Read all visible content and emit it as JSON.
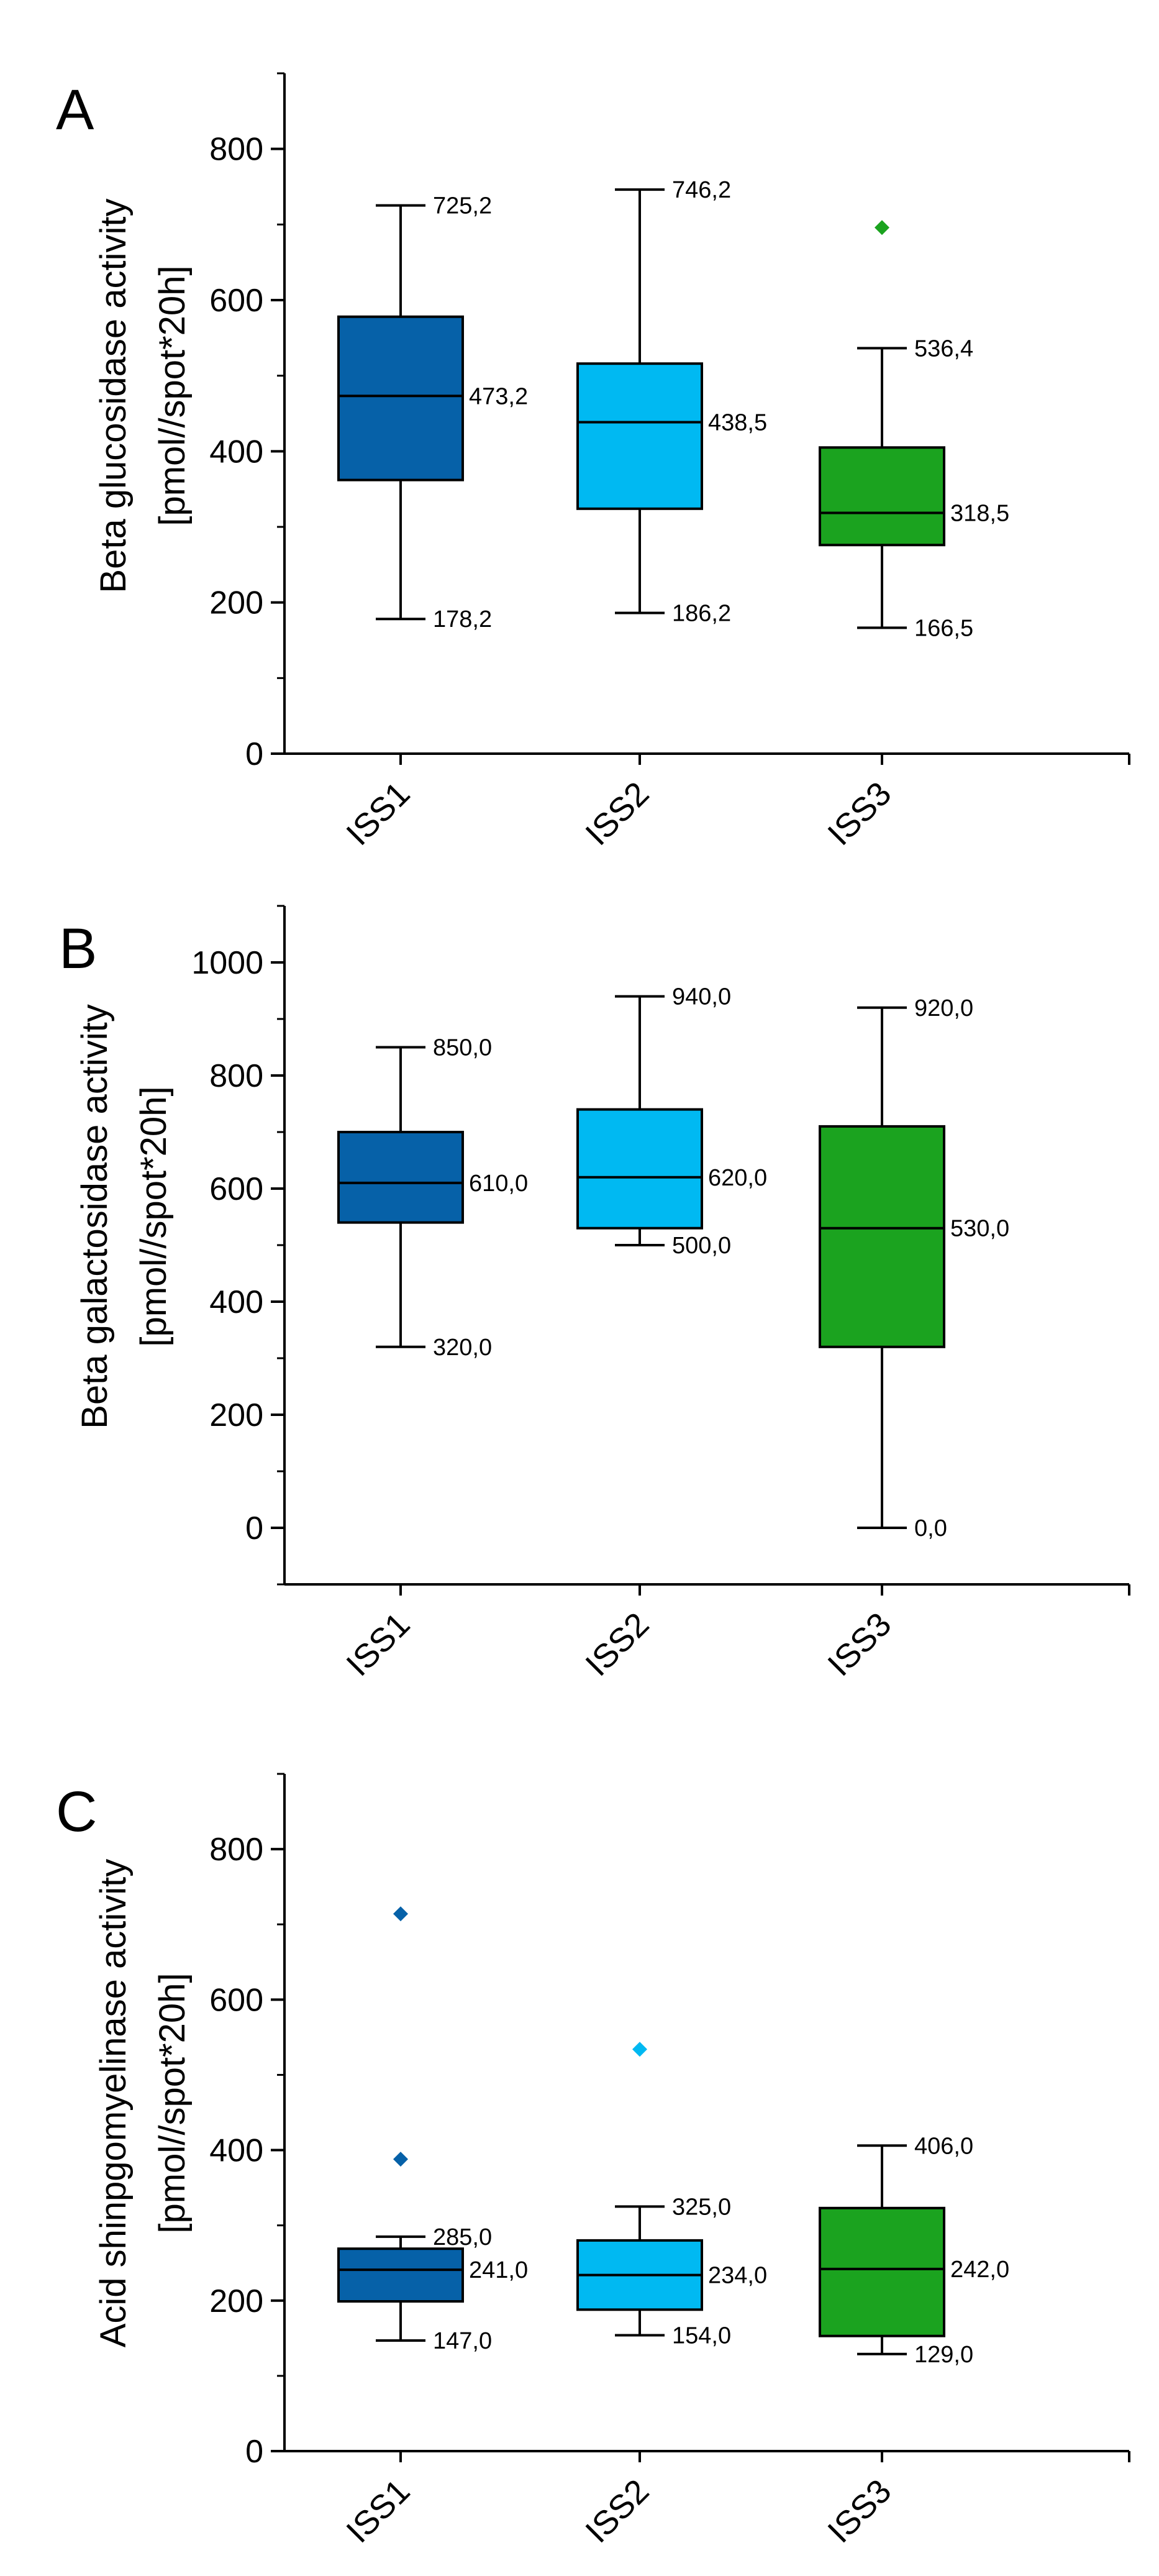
{
  "colors": {
    "ISS1": "#0661a8",
    "ISS2": "#00b9f2",
    "ISS3": "#1ba31f"
  },
  "chart_data": [
    {
      "type": "box",
      "panel_label": "A",
      "ylabel_line1": "Beta glucosidase activity",
      "ylabel_line2": "[pmol//spot*20h]",
      "ylim": [
        0,
        900
      ],
      "yticks": [
        0,
        200,
        400,
        600,
        800
      ],
      "ytick_labels": [
        "0",
        "200",
        "400",
        "600",
        "800"
      ],
      "minor_step": 100,
      "categories": [
        "ISS1",
        "ISS2",
        "ISS3"
      ],
      "boxes": [
        {
          "category": "ISS1",
          "whisker_low": 178.2,
          "q1": 362,
          "median": 473.2,
          "q3": 578,
          "whisker_high": 725.2,
          "outliers": [],
          "labels": {
            "whisker_high": "725,2",
            "median": "473,2",
            "whisker_low": "178,2"
          }
        },
        {
          "category": "ISS2",
          "whisker_low": 186.2,
          "q1": 324,
          "median": 438.5,
          "q3": 516,
          "whisker_high": 746.2,
          "outliers": [],
          "labels": {
            "whisker_high": "746,2",
            "median": "438,5",
            "whisker_low": "186,2"
          }
        },
        {
          "category": "ISS3",
          "whisker_low": 166.5,
          "q1": 276,
          "median": 318.5,
          "q3": 405,
          "whisker_high": 536.4,
          "outliers": [
            696
          ],
          "labels": {
            "whisker_high": "536,4",
            "median": "318,5",
            "whisker_low": "166,5"
          }
        }
      ]
    },
    {
      "type": "box",
      "panel_label": "B",
      "ylabel_line1": "Beta galactosidase activity",
      "ylabel_line2": "[pmol//spot*20h]",
      "ylim": [
        -100,
        1100
      ],
      "yticks": [
        0,
        200,
        400,
        600,
        800,
        1000
      ],
      "ytick_labels": [
        "0",
        "200",
        "400",
        "600",
        "800",
        "1000"
      ],
      "minor_step": 100,
      "categories": [
        "ISS1",
        "ISS2",
        "ISS3"
      ],
      "boxes": [
        {
          "category": "ISS1",
          "whisker_low": 320,
          "q1": 540,
          "median": 610,
          "q3": 700,
          "whisker_high": 850,
          "outliers": [],
          "labels": {
            "whisker_high": "850,0",
            "median": "610,0",
            "whisker_low": "320,0"
          }
        },
        {
          "category": "ISS2",
          "whisker_low": 500,
          "q1": 530,
          "median": 620,
          "q3": 740,
          "whisker_high": 940,
          "outliers": [],
          "labels": {
            "whisker_high": "940,0",
            "median": "620,0",
            "whisker_low": "500,0"
          }
        },
        {
          "category": "ISS3",
          "whisker_low": 0,
          "q1": 320,
          "median": 530,
          "q3": 710,
          "whisker_high": 920,
          "outliers": [],
          "labels": {
            "whisker_high": "920,0",
            "median": "530,0",
            "whisker_low": "0,0"
          }
        }
      ]
    },
    {
      "type": "box",
      "panel_label": "C",
      "ylabel_line1": "Acid shinpgomyelinase activity",
      "ylabel_line2": "[pmol//spot*20h]",
      "ylim": [
        0,
        900
      ],
      "yticks": [
        0,
        200,
        400,
        600,
        800
      ],
      "ytick_labels": [
        "0",
        "200",
        "400",
        "600",
        "800"
      ],
      "minor_step": 100,
      "categories": [
        "ISS1",
        "ISS2",
        "ISS3"
      ],
      "boxes": [
        {
          "category": "ISS1",
          "whisker_low": 147,
          "q1": 199,
          "median": 241,
          "q3": 269,
          "whisker_high": 285,
          "outliers": [
            388,
            714
          ],
          "labels": {
            "whisker_high": "285,0",
            "median": "241,0",
            "whisker_low": "147,0"
          }
        },
        {
          "category": "ISS2",
          "whisker_low": 154,
          "q1": 188,
          "median": 234,
          "q3": 280,
          "whisker_high": 325,
          "outliers": [
            534
          ],
          "labels": {
            "whisker_high": "325,0",
            "median": "234,0",
            "whisker_low": "154,0"
          }
        },
        {
          "category": "ISS3",
          "whisker_low": 129,
          "q1": 153,
          "median": 242,
          "q3": 323,
          "whisker_high": 406,
          "outliers": [],
          "labels": {
            "whisker_high": "406,0",
            "median": "242,0",
            "whisker_low": "129,0"
          }
        }
      ]
    }
  ]
}
